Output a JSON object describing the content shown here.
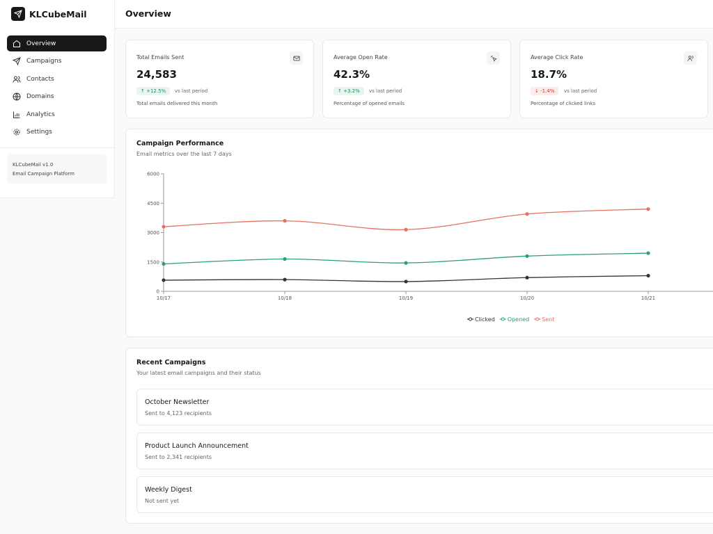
{
  "sidebar": {
    "brand": "KLCubeMail",
    "nav": [
      "Overview",
      "Campaigns",
      "Contacts",
      "Domains",
      "Analytics",
      "Settings"
    ],
    "footer": {
      "version": "KLCubeMail v1.0",
      "tagline": "Email Campaign Platform"
    }
  },
  "header": {
    "title": "Overview"
  },
  "stats": [
    {
      "label": "Total Emails Sent",
      "value": "24,583",
      "change": "+12.5%",
      "comparison": "vs last period",
      "description": "Total emails delivered this month"
    },
    {
      "label": "Average Open Rate",
      "value": "42.3%",
      "change": "+3.2%",
      "comparison": "vs last period",
      "description": "Percentage of opened emails"
    },
    {
      "label": "Average Click Rate",
      "value": "18.7%",
      "change": "-1.4%",
      "comparison": "vs last period",
      "description": "Percentage of clicked links"
    }
  ],
  "chart_data": {
    "type": "line",
    "title": "Campaign Performance",
    "subtitle": "Email metrics over the last 7 days",
    "categories": [
      "10/17",
      "10/18",
      "10/19",
      "10/20",
      "10/21"
    ],
    "series": [
      {
        "name": "Clicked",
        "color": "#333333",
        "values": [
          570,
          600,
          500,
          700,
          800
        ]
      },
      {
        "name": "Opened",
        "color": "#2a9d7c",
        "values": [
          1400,
          1650,
          1450,
          1800,
          1950
        ]
      },
      {
        "name": "Sent",
        "color": "#e76f5c",
        "values": [
          3300,
          3600,
          3150,
          3950,
          4200
        ]
      }
    ],
    "ylim": [
      0,
      6000
    ],
    "yticks": [
      0,
      1500,
      3000,
      4500,
      6000
    ],
    "grid": false,
    "legend": "bottom"
  },
  "recent": {
    "title": "Recent Campaigns",
    "subtitle": "Your latest email campaigns and their status",
    "items": [
      {
        "name": "October Newsletter",
        "detail": "Sent to 4,123 recipients"
      },
      {
        "name": "Product Launch Announcement",
        "detail": "Sent to 2,341 recipients"
      },
      {
        "name": "Weekly Digest",
        "detail": "Not sent yet"
      }
    ]
  }
}
